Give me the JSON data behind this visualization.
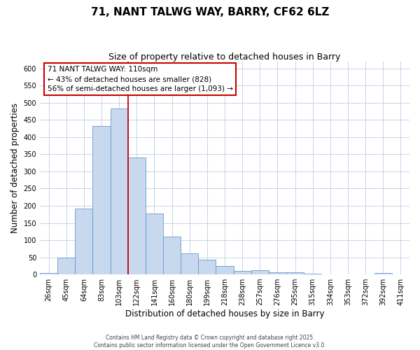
{
  "title": "71, NANT TALWG WAY, BARRY, CF62 6LZ",
  "subtitle": "Size of property relative to detached houses in Barry",
  "xlabel": "Distribution of detached houses by size in Barry",
  "ylabel": "Number of detached properties",
  "bar_labels": [
    "26sqm",
    "45sqm",
    "64sqm",
    "83sqm",
    "103sqm",
    "122sqm",
    "141sqm",
    "160sqm",
    "180sqm",
    "199sqm",
    "218sqm",
    "238sqm",
    "257sqm",
    "276sqm",
    "295sqm",
    "315sqm",
    "334sqm",
    "353sqm",
    "372sqm",
    "392sqm",
    "411sqm"
  ],
  "bar_heights": [
    5,
    50,
    192,
    432,
    483,
    340,
    178,
    110,
    62,
    44,
    25,
    10,
    12,
    7,
    7,
    3,
    0,
    0,
    0,
    5,
    0
  ],
  "bar_color": "#c8d8ee",
  "bar_edge_color": "#6699cc",
  "vline_after_index": 4,
  "vline_color": "#cc0000",
  "ylim": [
    0,
    620
  ],
  "yticks": [
    0,
    50,
    100,
    150,
    200,
    250,
    300,
    350,
    400,
    450,
    500,
    550,
    600
  ],
  "annotation_title": "71 NANT TALWG WAY: 110sqm",
  "annotation_line1": "← 43% of detached houses are smaller (828)",
  "annotation_line2": "56% of semi-detached houses are larger (1,093) →",
  "footer_line1": "Contains HM Land Registry data © Crown copyright and database right 2025.",
  "footer_line2": "Contains public sector information licensed under the Open Government Licence v3.0.",
  "background_color": "#ffffff",
  "grid_color": "#c8d4e8",
  "title_fontsize": 11,
  "subtitle_fontsize": 9,
  "axis_label_fontsize": 8.5,
  "tick_fontsize": 7,
  "annotation_fontsize": 7.5,
  "footer_fontsize": 5.5
}
